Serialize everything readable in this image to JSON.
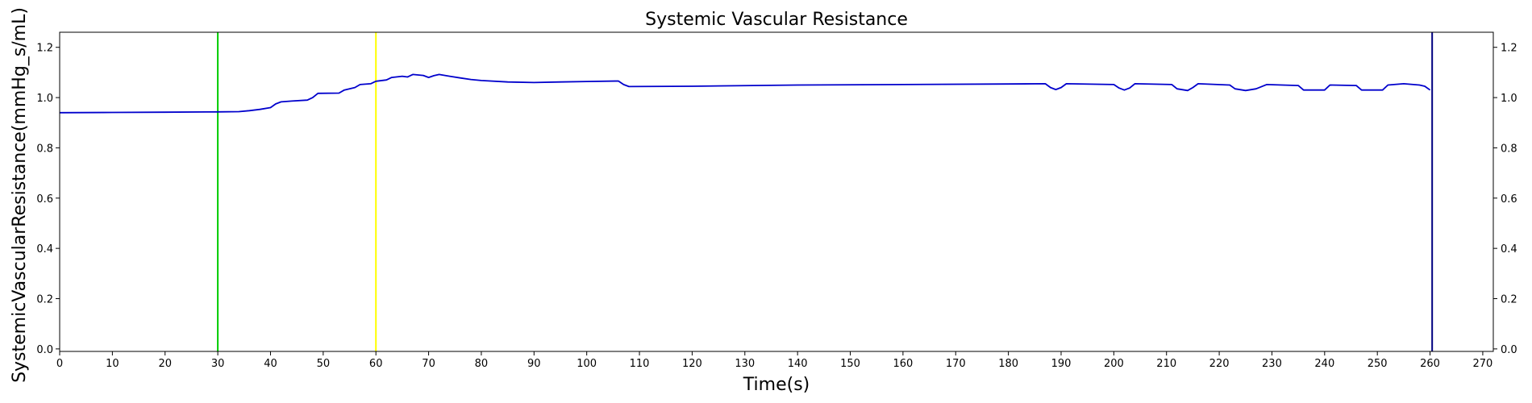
{
  "chart_data": {
    "type": "line",
    "title": "Systemic Vascular Resistance",
    "xlabel": "Time(s)",
    "ylabel": "SystemicVascularResistance(mmHg_s/mL)",
    "xlim": [
      0,
      272
    ],
    "ylim": [
      -0.01,
      1.26
    ],
    "x_ticks": [
      "0",
      "10",
      "20",
      "30",
      "40",
      "50",
      "60",
      "70",
      "80",
      "90",
      "100",
      "110",
      "120",
      "130",
      "140",
      "150",
      "160",
      "170",
      "180",
      "190",
      "200",
      "210",
      "220",
      "230",
      "240",
      "250",
      "260",
      "270"
    ],
    "y_ticks": [
      "0.0",
      "0.2",
      "0.4",
      "0.6",
      "0.8",
      "1.0",
      "1.2"
    ],
    "y_ticks_right": true,
    "grid": false,
    "markers": [
      {
        "x": 30,
        "color": "#00cc00"
      },
      {
        "x": 60,
        "color": "#ffff00"
      },
      {
        "x": 260.4,
        "color": "#000080"
      }
    ],
    "series": [
      {
        "color": "#0000cc",
        "points": [
          [
            0,
            0.94
          ],
          [
            10,
            0.941
          ],
          [
            20,
            0.942
          ],
          [
            30,
            0.943
          ],
          [
            34,
            0.944
          ],
          [
            36,
            0.948
          ],
          [
            38,
            0.953
          ],
          [
            40,
            0.96
          ],
          [
            41,
            0.975
          ],
          [
            42,
            0.983
          ],
          [
            44,
            0.986
          ],
          [
            47,
            0.99
          ],
          [
            48,
            1.0
          ],
          [
            49,
            1.017
          ],
          [
            53,
            1.018
          ],
          [
            54,
            1.03
          ],
          [
            56,
            1.04
          ],
          [
            57,
            1.052
          ],
          [
            59,
            1.055
          ],
          [
            60,
            1.065
          ],
          [
            62,
            1.07
          ],
          [
            63,
            1.08
          ],
          [
            65,
            1.085
          ],
          [
            66,
            1.082
          ],
          [
            67,
            1.092
          ],
          [
            69,
            1.088
          ],
          [
            70,
            1.08
          ],
          [
            71,
            1.087
          ],
          [
            72,
            1.092
          ],
          [
            74,
            1.085
          ],
          [
            76,
            1.078
          ],
          [
            78,
            1.072
          ],
          [
            80,
            1.068
          ],
          [
            85,
            1.062
          ],
          [
            90,
            1.06
          ],
          [
            95,
            1.062
          ],
          [
            100,
            1.064
          ],
          [
            106,
            1.066
          ],
          [
            107,
            1.052
          ],
          [
            108,
            1.044
          ],
          [
            120,
            1.045
          ],
          [
            140,
            1.05
          ],
          [
            160,
            1.052
          ],
          [
            180,
            1.054
          ],
          [
            187,
            1.055
          ],
          [
            188,
            1.04
          ],
          [
            189,
            1.032
          ],
          [
            190,
            1.04
          ],
          [
            191,
            1.055
          ],
          [
            200,
            1.052
          ],
          [
            201,
            1.038
          ],
          [
            202,
            1.03
          ],
          [
            203,
            1.038
          ],
          [
            204,
            1.055
          ],
          [
            211,
            1.052
          ],
          [
            212,
            1.035
          ],
          [
            214,
            1.028
          ],
          [
            215,
            1.04
          ],
          [
            216,
            1.055
          ],
          [
            222,
            1.05
          ],
          [
            223,
            1.035
          ],
          [
            225,
            1.028
          ],
          [
            227,
            1.035
          ],
          [
            229,
            1.052
          ],
          [
            235,
            1.048
          ],
          [
            236,
            1.03
          ],
          [
            240,
            1.03
          ],
          [
            241,
            1.05
          ],
          [
            246,
            1.048
          ],
          [
            247,
            1.03
          ],
          [
            251,
            1.03
          ],
          [
            252,
            1.05
          ],
          [
            255,
            1.055
          ],
          [
            258,
            1.05
          ],
          [
            259,
            1.045
          ],
          [
            260,
            1.03
          ]
        ]
      }
    ]
  }
}
